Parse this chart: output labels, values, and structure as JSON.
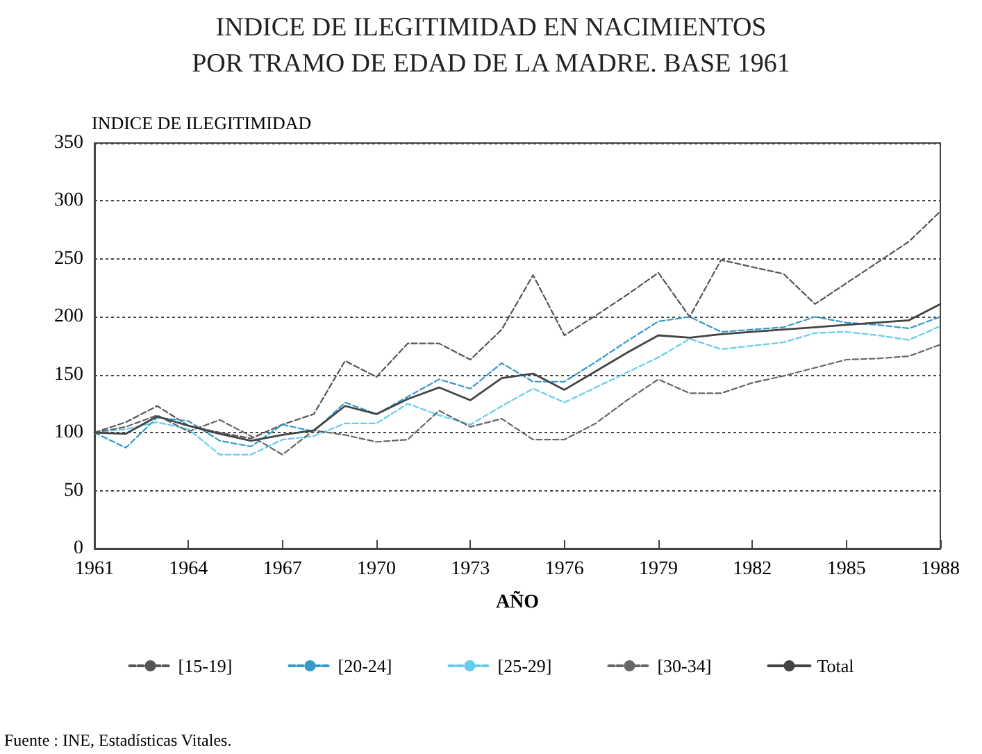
{
  "chart_data": {
    "type": "line",
    "title": "INDICE DE ILEGITIMIDAD EN NACIMIENTOS\nPOR TRAMO DE EDAD DE LA MADRE. BASE 1961",
    "ylabel": "INDICE DE ILEGITIMIDAD",
    "xlabel": "AÑO",
    "annotations": [
      "Fuente : INE, Estadísticas Vitales."
    ],
    "x": [
      1961,
      1962,
      1963,
      1964,
      1965,
      1966,
      1967,
      1968,
      1969,
      1970,
      1971,
      1972,
      1973,
      1974,
      1975,
      1976,
      1977,
      1978,
      1979,
      1980,
      1981,
      1982,
      1983,
      1984,
      1985,
      1986,
      1987,
      1988
    ],
    "series": [
      {
        "name": "[15-19]",
        "color": "#555555",
        "line_style": "dashed",
        "values": [
          100,
          109,
          123,
          106,
          100,
          95,
          107,
          116,
          162,
          148,
          177,
          177,
          163,
          189,
          236,
          184,
          201,
          219,
          238,
          200,
          249,
          243,
          237,
          211,
          229,
          247,
          265,
          291
        ]
      },
      {
        "name": "[20-24]",
        "color": "#3399cc",
        "line_style": "dashed",
        "values": [
          100,
          87,
          113,
          110,
          93,
          88,
          107,
          101,
          126,
          116,
          131,
          146,
          138,
          160,
          144,
          144,
          161,
          179,
          196,
          200,
          187,
          189,
          191,
          200,
          195,
          193,
          190,
          200
        ]
      },
      {
        "name": "[25-29]",
        "color": "#66ccee",
        "line_style": "dashed",
        "values": [
          100,
          103,
          109,
          103,
          81,
          81,
          94,
          97,
          108,
          108,
          125,
          115,
          107,
          123,
          138,
          126,
          139,
          152,
          165,
          181,
          172,
          175,
          178,
          186,
          187,
          184,
          180,
          192
        ]
      },
      {
        "name": "[30-34]",
        "color": "#666666",
        "line_style": "dashed",
        "values": [
          100,
          105,
          115,
          101,
          111,
          97,
          81,
          102,
          98,
          92,
          94,
          119,
          105,
          112,
          94,
          94,
          108,
          128,
          146,
          134,
          134,
          143,
          149,
          156,
          163,
          164,
          166,
          176
        ]
      },
      {
        "name": "Total",
        "color": "#444444",
        "line_style": "solid",
        "values": [
          100,
          99,
          114,
          106,
          99,
          93,
          98,
          102,
          123,
          116,
          129,
          139,
          128,
          147,
          151,
          137,
          153,
          169,
          184,
          182,
          185,
          187,
          189,
          191,
          193,
          195,
          197,
          211
        ]
      }
    ],
    "xlim": [
      1961,
      1988
    ],
    "xticks": [
      1961,
      1964,
      1967,
      1970,
      1973,
      1976,
      1979,
      1982,
      1985,
      1988
    ],
    "ylim": [
      0,
      350
    ],
    "yticks": [
      0,
      50,
      100,
      150,
      200,
      250,
      300,
      350
    ],
    "grid": "y",
    "legend": "bottom",
    "marker": "none"
  }
}
